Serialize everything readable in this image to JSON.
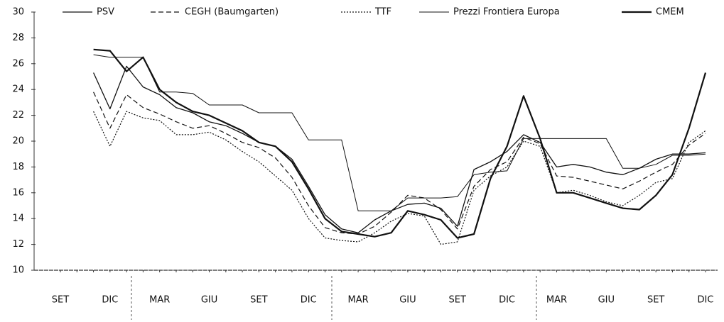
{
  "chart_data": {
    "type": "line",
    "categories": [
      "SET",
      null,
      null,
      "DIC",
      null,
      null,
      "MAR",
      null,
      null,
      "GIU",
      null,
      null,
      "SET",
      null,
      null,
      "DIC",
      null,
      null,
      "MAR",
      null,
      null,
      "GIU",
      null,
      null,
      "SET",
      null,
      null,
      "DIC",
      null,
      null,
      "MAR",
      null,
      null,
      "GIU",
      null,
      null,
      "SET",
      null,
      null,
      "DIC"
    ],
    "ylim": [
      10,
      30
    ],
    "yticks": [
      10,
      12,
      14,
      16,
      18,
      20,
      22,
      24,
      26,
      28,
      30
    ],
    "series": [
      {
        "name": "PSV",
        "color": "#111111",
        "width": 1.3,
        "dash": "none",
        "values": [
          null,
          null,
          25.3,
          22.5,
          25.8,
          24.2,
          23.6,
          22.6,
          22.2,
          21.5,
          21.2,
          20.6,
          19.9,
          19.6,
          18.6,
          16.5,
          14.3,
          13.2,
          12.9,
          13.9,
          14.6,
          15.1,
          15.2,
          14.8,
          13.4,
          17.8,
          18.4,
          19.2,
          20.5,
          19.9,
          18.0,
          18.2,
          18.0,
          17.6,
          17.4,
          17.9,
          18.6,
          19.0,
          19.0,
          19.1
        ]
      },
      {
        "name": "CEGH (Baumgarten)",
        "color": "#111111",
        "width": 1.2,
        "dash": "7 4",
        "values": [
          null,
          null,
          23.8,
          21.0,
          23.6,
          22.6,
          22.1,
          21.5,
          21.0,
          21.2,
          20.6,
          19.9,
          19.5,
          18.7,
          17.2,
          15.0,
          13.3,
          12.9,
          12.8,
          13.4,
          14.5,
          15.8,
          15.6,
          14.7,
          13.2,
          16.5,
          17.8,
          18.4,
          20.3,
          19.8,
          17.3,
          17.2,
          16.9,
          16.6,
          16.3,
          16.9,
          17.6,
          18.2,
          19.7,
          20.6
        ]
      },
      {
        "name": "TTF",
        "color": "#111111",
        "width": 1.2,
        "dash": "2 2",
        "values": [
          null,
          null,
          22.3,
          19.6,
          22.3,
          21.8,
          21.6,
          20.5,
          20.5,
          20.7,
          20.1,
          19.2,
          18.4,
          17.3,
          16.2,
          14.0,
          12.5,
          12.3,
          12.2,
          12.9,
          13.8,
          14.4,
          14.2,
          12.0,
          12.2,
          16.2,
          17.3,
          18.0,
          20.0,
          19.6,
          16.0,
          16.2,
          15.8,
          15.3,
          15.0,
          15.8,
          16.8,
          17.1,
          19.9,
          20.8
        ]
      },
      {
        "name": "Prezzi Frontiera Europa",
        "color": "#111111",
        "width": 1,
        "dash": "none",
        "values": [
          null,
          null,
          26.7,
          26.5,
          26.5,
          26.5,
          23.8,
          23.8,
          23.7,
          22.8,
          22.8,
          22.8,
          22.2,
          22.2,
          22.2,
          20.1,
          20.1,
          20.1,
          14.6,
          14.6,
          14.6,
          15.6,
          15.6,
          15.6,
          15.7,
          17.4,
          17.6,
          17.7,
          20.2,
          20.2,
          20.2,
          20.2,
          20.2,
          20.2,
          17.9,
          17.9,
          18.2,
          18.9,
          18.9,
          19.0
        ]
      },
      {
        "name": "CMEM",
        "color": "#111111",
        "width": 2.2,
        "dash": "none",
        "values": [
          null,
          null,
          27.1,
          27.0,
          25.4,
          26.5,
          24.0,
          23.0,
          22.3,
          22.0,
          21.4,
          20.8,
          19.9,
          19.6,
          18.4,
          16.3,
          14.0,
          13.0,
          12.8,
          12.6,
          12.9,
          14.6,
          14.3,
          13.9,
          12.5,
          12.8,
          17.1,
          19.6,
          23.5,
          20.2,
          16.0,
          16.0,
          15.6,
          15.2,
          14.8,
          14.7,
          15.8,
          17.4,
          21.0,
          25.3
        ]
      }
    ]
  }
}
